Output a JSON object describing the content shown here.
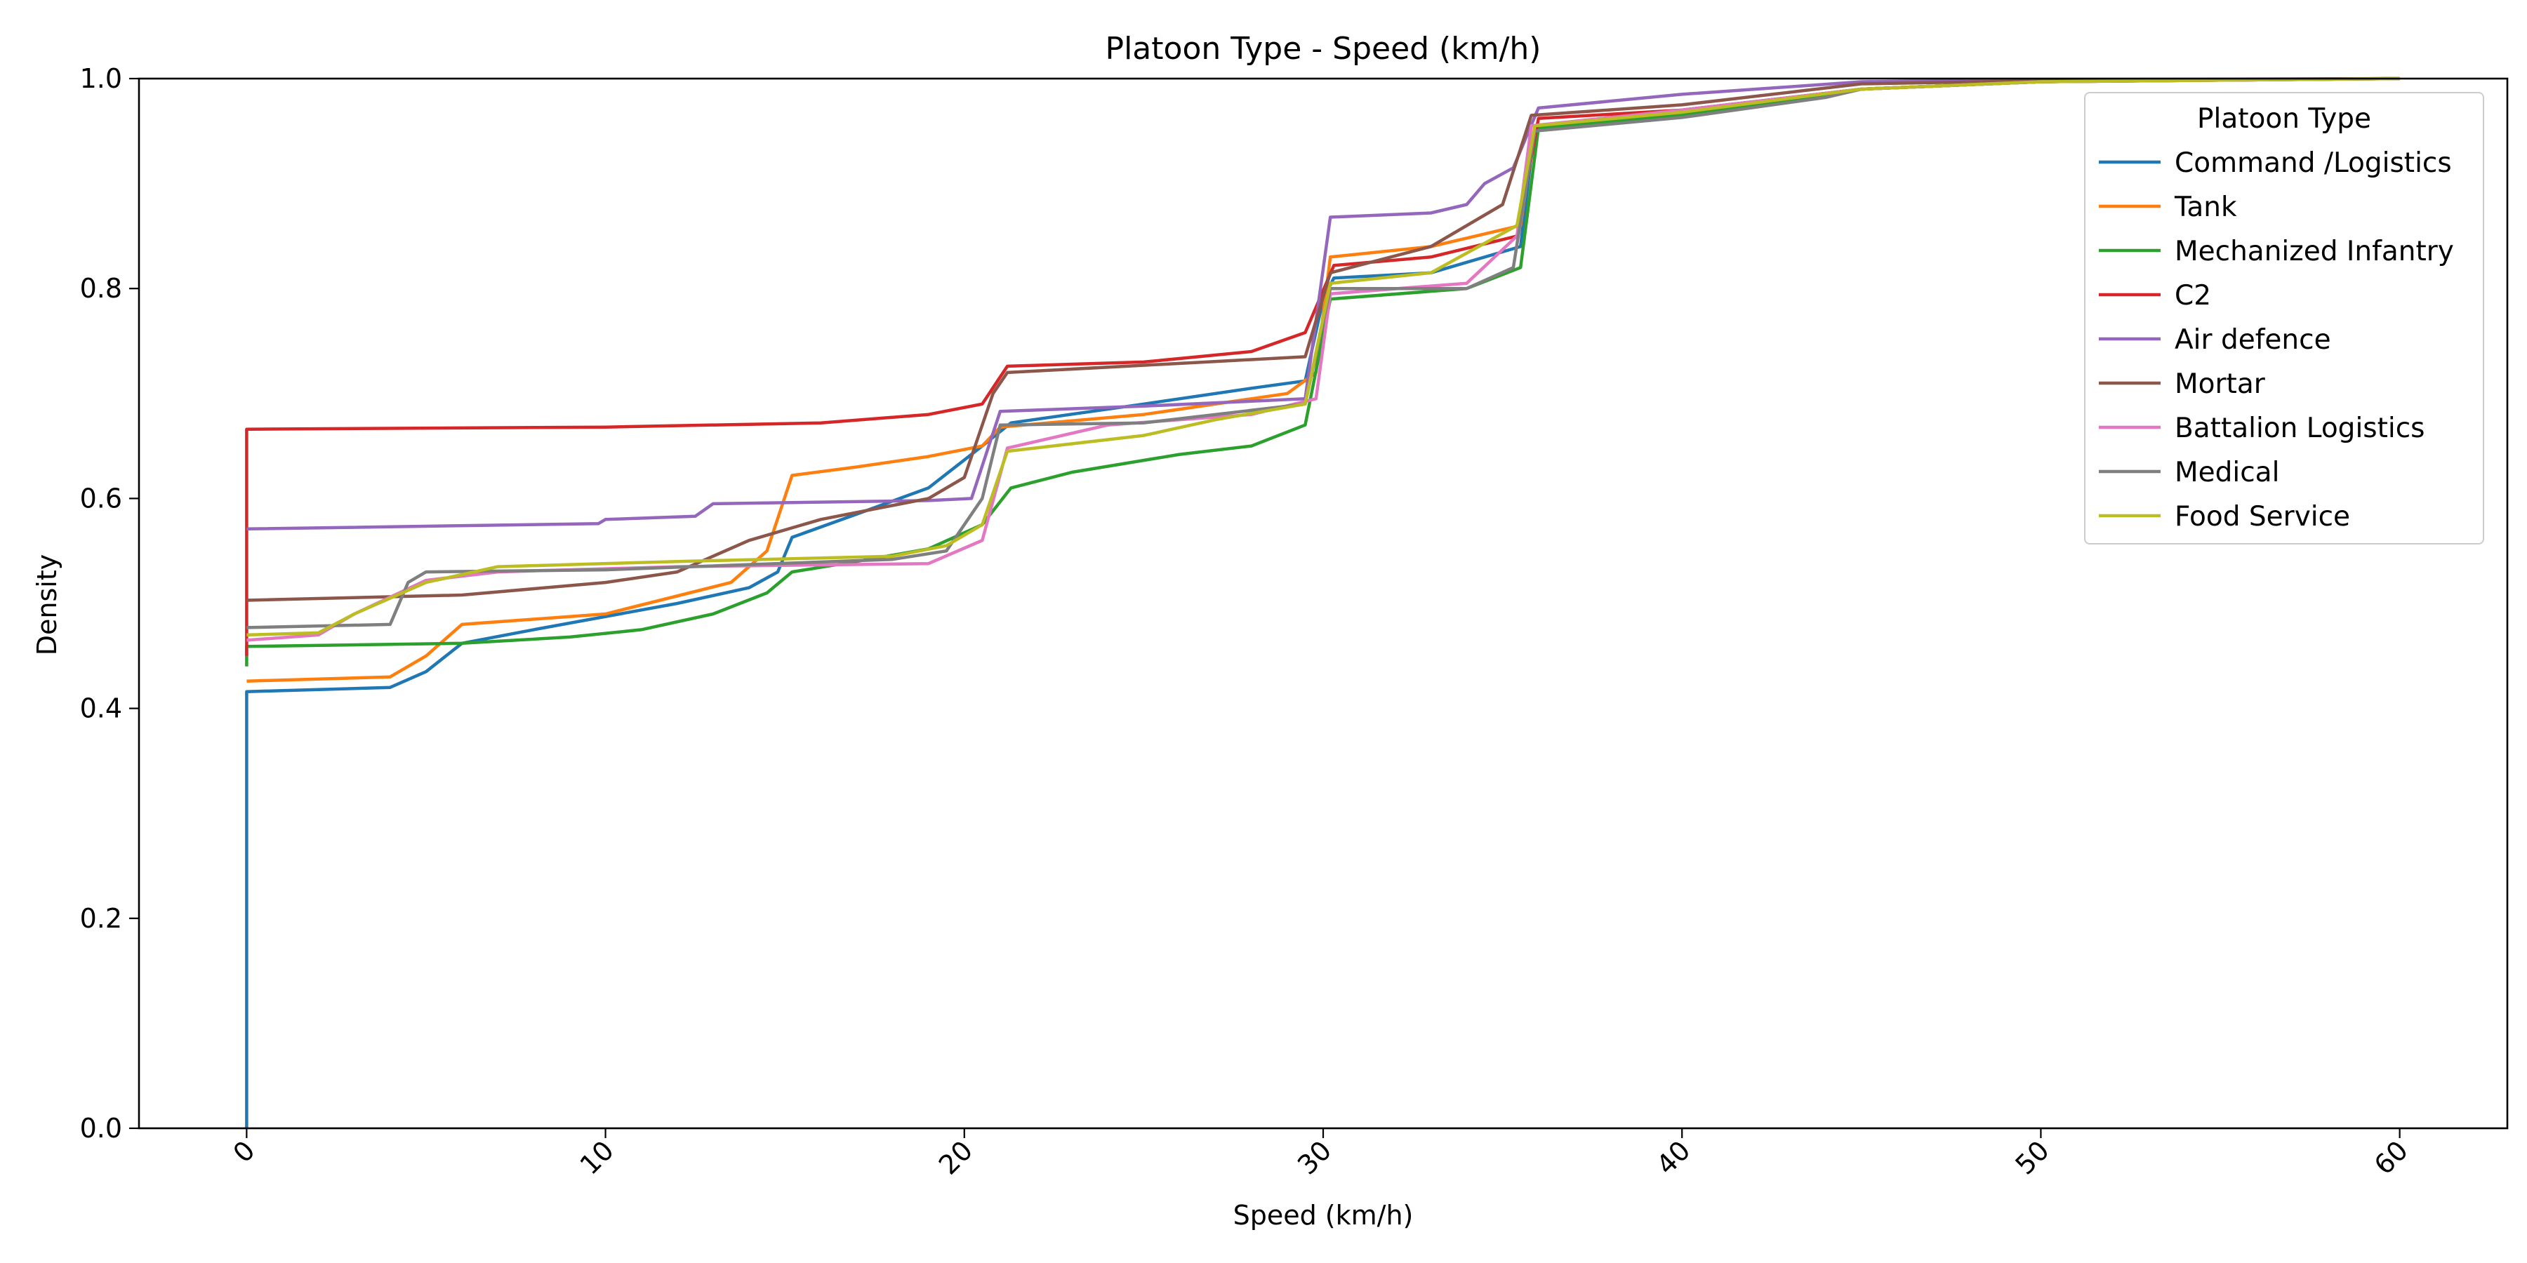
{
  "chart_data": {
    "type": "line",
    "title": "Platoon Type - Speed (km/h)",
    "xlabel": "Speed (km/h)",
    "ylabel": "Density",
    "xlim": [
      -3,
      63
    ],
    "ylim": [
      0,
      1
    ],
    "x_ticks": [
      0,
      10,
      20,
      30,
      40,
      50,
      60
    ],
    "y_ticks": [
      0.0,
      0.2,
      0.4,
      0.6,
      0.8,
      1.0
    ],
    "y_tick_labels": [
      "0.0",
      "0.2",
      "0.4",
      "0.6",
      "0.8",
      "1.0"
    ],
    "x_tick_rotation": 45,
    "grid": false,
    "legend": {
      "title": "Platoon Type",
      "placement": "top-right"
    },
    "series": [
      {
        "name": "Command /Logistics",
        "color": "#1f77b4",
        "points": [
          [
            0,
            0
          ],
          [
            0,
            0.416
          ],
          [
            4,
            0.42
          ],
          [
            5,
            0.435
          ],
          [
            6,
            0.462
          ],
          [
            8,
            0.475
          ],
          [
            12,
            0.5
          ],
          [
            14,
            0.515
          ],
          [
            14.8,
            0.53
          ],
          [
            15.2,
            0.563
          ],
          [
            17,
            0.585
          ],
          [
            19,
            0.61
          ],
          [
            20.5,
            0.65
          ],
          [
            21.3,
            0.672
          ],
          [
            25,
            0.69
          ],
          [
            28,
            0.705
          ],
          [
            29.5,
            0.712
          ],
          [
            30,
            0.79
          ],
          [
            30.3,
            0.81
          ],
          [
            33,
            0.815
          ],
          [
            35.5,
            0.84
          ],
          [
            35.9,
            0.955
          ],
          [
            40,
            0.97
          ],
          [
            45,
            0.99
          ],
          [
            50,
            0.997
          ],
          [
            55,
            0.999
          ],
          [
            60,
            1.0
          ]
        ]
      },
      {
        "name": "Tank",
        "color": "#ff7f0e",
        "points": [
          [
            0,
            0.426
          ],
          [
            4,
            0.43
          ],
          [
            5,
            0.45
          ],
          [
            6,
            0.48
          ],
          [
            10,
            0.49
          ],
          [
            13.5,
            0.52
          ],
          [
            14.5,
            0.55
          ],
          [
            15.2,
            0.622
          ],
          [
            17,
            0.63
          ],
          [
            19,
            0.64
          ],
          [
            20.5,
            0.65
          ],
          [
            21,
            0.668
          ],
          [
            25,
            0.68
          ],
          [
            29,
            0.7
          ],
          [
            29.8,
            0.72
          ],
          [
            30.2,
            0.83
          ],
          [
            33,
            0.84
          ],
          [
            35.5,
            0.86
          ],
          [
            35.9,
            0.955
          ],
          [
            40,
            0.965
          ],
          [
            44,
            0.985
          ],
          [
            45,
            0.99
          ],
          [
            50,
            0.997
          ],
          [
            60,
            1.0
          ]
        ]
      },
      {
        "name": "Mechanized Infantry",
        "color": "#2ca02c",
        "points": [
          [
            0,
            0.44
          ],
          [
            0,
            0.459
          ],
          [
            6,
            0.462
          ],
          [
            9,
            0.468
          ],
          [
            11,
            0.475
          ],
          [
            13,
            0.49
          ],
          [
            14.5,
            0.51
          ],
          [
            15.2,
            0.53
          ],
          [
            17,
            0.54
          ],
          [
            19,
            0.552
          ],
          [
            20.5,
            0.575
          ],
          [
            21.3,
            0.61
          ],
          [
            23,
            0.625
          ],
          [
            26,
            0.642
          ],
          [
            28,
            0.65
          ],
          [
            29.5,
            0.67
          ],
          [
            30.2,
            0.79
          ],
          [
            34,
            0.8
          ],
          [
            35.5,
            0.82
          ],
          [
            36,
            0.953
          ],
          [
            40,
            0.965
          ],
          [
            45,
            0.99
          ],
          [
            50,
            0.997
          ],
          [
            60,
            1.0
          ]
        ]
      },
      {
        "name": "C2",
        "color": "#d62728",
        "points": [
          [
            0,
            0.45
          ],
          [
            0,
            0.666
          ],
          [
            10,
            0.668
          ],
          [
            16,
            0.672
          ],
          [
            19,
            0.68
          ],
          [
            20.5,
            0.69
          ],
          [
            21.2,
            0.726
          ],
          [
            25,
            0.73
          ],
          [
            28,
            0.74
          ],
          [
            29.5,
            0.758
          ],
          [
            30.3,
            0.822
          ],
          [
            33,
            0.83
          ],
          [
            35.4,
            0.85
          ],
          [
            36,
            0.962
          ],
          [
            40,
            0.97
          ],
          [
            45,
            0.99
          ],
          [
            50,
            0.997
          ],
          [
            60,
            1.0
          ]
        ]
      },
      {
        "name": "Air defence",
        "color": "#9467bd",
        "points": [
          [
            0,
            0.571
          ],
          [
            9.8,
            0.576
          ],
          [
            10,
            0.58
          ],
          [
            12.5,
            0.583
          ],
          [
            13,
            0.595
          ],
          [
            19,
            0.598
          ],
          [
            20.2,
            0.6
          ],
          [
            21,
            0.683
          ],
          [
            25,
            0.688
          ],
          [
            29.5,
            0.695
          ],
          [
            30.2,
            0.868
          ],
          [
            33,
            0.872
          ],
          [
            34,
            0.88
          ],
          [
            34.5,
            0.9
          ],
          [
            35.3,
            0.915
          ],
          [
            36,
            0.972
          ],
          [
            40,
            0.985
          ],
          [
            45,
            0.997
          ],
          [
            50,
            0.999
          ],
          [
            60,
            1.0
          ]
        ]
      },
      {
        "name": "Mortar",
        "color": "#8c564b",
        "points": [
          [
            0,
            0.503
          ],
          [
            6,
            0.508
          ],
          [
            10,
            0.52
          ],
          [
            12,
            0.53
          ],
          [
            14,
            0.56
          ],
          [
            16,
            0.58
          ],
          [
            19,
            0.6
          ],
          [
            20,
            0.62
          ],
          [
            20.8,
            0.7
          ],
          [
            21.2,
            0.72
          ],
          [
            29.5,
            0.735
          ],
          [
            30.2,
            0.815
          ],
          [
            33,
            0.84
          ],
          [
            35,
            0.88
          ],
          [
            35.8,
            0.965
          ],
          [
            40,
            0.975
          ],
          [
            45,
            0.995
          ],
          [
            50,
            0.998
          ],
          [
            60,
            1.0
          ]
        ]
      },
      {
        "name": "Battalion Logistics",
        "color": "#e377c2",
        "points": [
          [
            0,
            0.465
          ],
          [
            2,
            0.47
          ],
          [
            3,
            0.49
          ],
          [
            5,
            0.522
          ],
          [
            7,
            0.53
          ],
          [
            12,
            0.535
          ],
          [
            19,
            0.538
          ],
          [
            20.5,
            0.56
          ],
          [
            21.2,
            0.648
          ],
          [
            24,
            0.67
          ],
          [
            28,
            0.68
          ],
          [
            29.8,
            0.695
          ],
          [
            30.2,
            0.795
          ],
          [
            34,
            0.805
          ],
          [
            35.4,
            0.85
          ],
          [
            35.8,
            0.955
          ],
          [
            40,
            0.97
          ],
          [
            45,
            0.99
          ],
          [
            50,
            0.997
          ],
          [
            60,
            1.0
          ]
        ]
      },
      {
        "name": "Medical",
        "color": "#7f7f7f",
        "points": [
          [
            0,
            0.477
          ],
          [
            4,
            0.48
          ],
          [
            4.5,
            0.52
          ],
          [
            5,
            0.53
          ],
          [
            10,
            0.532
          ],
          [
            18,
            0.542
          ],
          [
            19.5,
            0.55
          ],
          [
            20.5,
            0.6
          ],
          [
            21,
            0.67
          ],
          [
            25,
            0.672
          ],
          [
            29.5,
            0.69
          ],
          [
            30.2,
            0.8
          ],
          [
            34,
            0.8
          ],
          [
            35.3,
            0.82
          ],
          [
            35.9,
            0.95
          ],
          [
            40,
            0.963
          ],
          [
            44,
            0.982
          ],
          [
            45,
            0.99
          ],
          [
            50,
            0.997
          ],
          [
            60,
            1.0
          ]
        ]
      },
      {
        "name": "Food Service",
        "color": "#bcbd22",
        "points": [
          [
            0,
            0.47
          ],
          [
            2,
            0.472
          ],
          [
            3,
            0.49
          ],
          [
            5,
            0.52
          ],
          [
            7,
            0.535
          ],
          [
            12,
            0.54
          ],
          [
            18,
            0.545
          ],
          [
            19.5,
            0.555
          ],
          [
            20.5,
            0.575
          ],
          [
            21.2,
            0.645
          ],
          [
            25,
            0.66
          ],
          [
            27,
            0.675
          ],
          [
            29.5,
            0.69
          ],
          [
            30.2,
            0.805
          ],
          [
            33,
            0.815
          ],
          [
            35.4,
            0.86
          ],
          [
            35.9,
            0.955
          ],
          [
            40,
            0.968
          ],
          [
            45,
            0.99
          ],
          [
            50,
            0.997
          ],
          [
            60,
            1.0
          ]
        ]
      }
    ]
  }
}
